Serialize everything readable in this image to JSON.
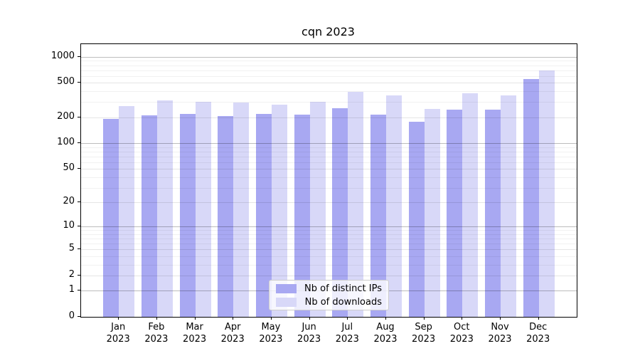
{
  "chart_data": {
    "type": "bar",
    "title": "cqn 2023",
    "categories": [
      "Jan",
      "Feb",
      "Mar",
      "Apr",
      "May",
      "Jun",
      "Jul",
      "Aug",
      "Sep",
      "Oct",
      "Nov",
      "Dec"
    ],
    "xtick_year": "2023",
    "series": [
      {
        "name": "Nb of distinct IPs",
        "color": "#a8a8f2",
        "values": [
          190,
          212,
          219,
          205,
          217,
          214,
          256,
          214,
          179,
          245,
          245,
          557
        ]
      },
      {
        "name": "Nb of downloads",
        "color": "#d8d8f8",
        "values": [
          272,
          316,
          300,
          296,
          282,
          304,
          396,
          356,
          252,
          382,
          358,
          696
        ]
      }
    ],
    "yscale": "log1p",
    "ylim": [
      0,
      1400
    ],
    "ytick_labels": [
      "0",
      "1",
      "2",
      "5",
      "10",
      "20",
      "50",
      "100",
      "200",
      "500",
      "1000"
    ],
    "grid": "on",
    "legend_position": "lower center"
  }
}
